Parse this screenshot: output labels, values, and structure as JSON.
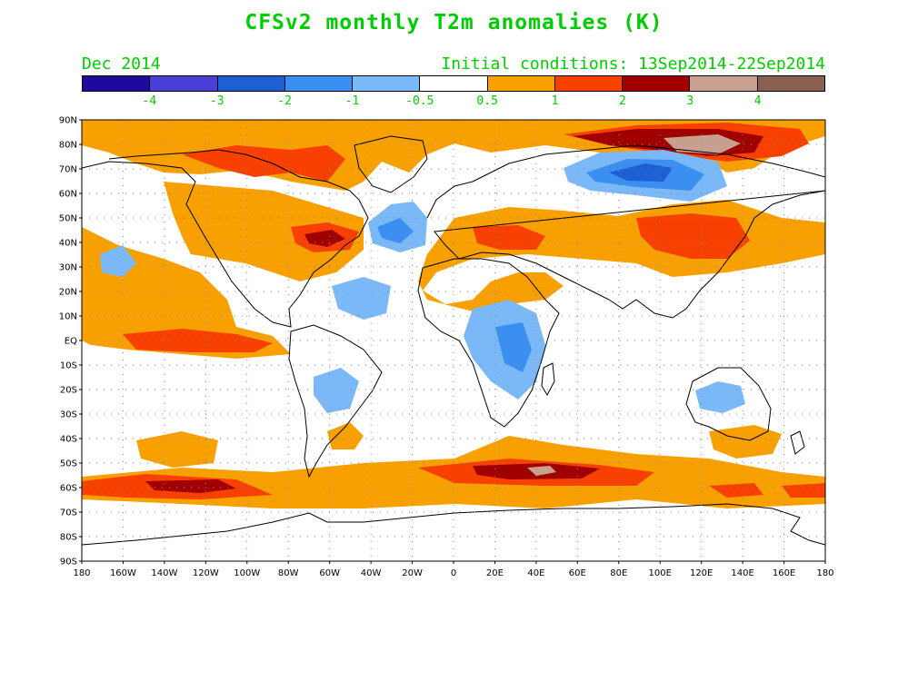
{
  "title": "CFSv2 monthly T2m anomalies (K)",
  "valid_month": "Dec 2014",
  "initial_conditions": "Initial conditions: 13Sep2014-22Sep2014",
  "colorbar": {
    "colors": [
      "#1e0a9c",
      "#4a3fd8",
      "#1f5fd4",
      "#3a8ff0",
      "#7ab8f8",
      "#ffffff",
      "#f8a000",
      "#f84000",
      "#a00000",
      "#c8a090",
      "#886050"
    ],
    "labels": [
      "-4",
      "-3",
      "-2",
      "-1",
      "-0.5",
      "0.5",
      "1",
      "2",
      "3",
      "4"
    ]
  },
  "axes": {
    "lat_labels": [
      "90N",
      "80N",
      "70N",
      "60N",
      "50N",
      "40N",
      "30N",
      "20N",
      "10N",
      "EQ",
      "10S",
      "20S",
      "30S",
      "40S",
      "50S",
      "60S",
      "70S",
      "80S",
      "90S"
    ],
    "lon_labels": [
      "180",
      "160W",
      "140W",
      "120W",
      "100W",
      "80W",
      "60W",
      "40W",
      "20W",
      "0",
      "20E",
      "40E",
      "60E",
      "80E",
      "100E",
      "120E",
      "140E",
      "160E",
      "180"
    ]
  },
  "anomaly_regions": [
    {
      "region": "Arctic / Siberia warm band",
      "level": "2 to 3"
    },
    {
      "region": "Central Siberia",
      "level": "3 to 4"
    },
    {
      "region": "Northwest Russia / Scandinavia cold",
      "level": "-2 to -1"
    },
    {
      "region": "North Atlantic (mid-latitude) cold",
      "level": "-1 to -0.5"
    },
    {
      "region": "Eastern North America warm",
      "level": "1 to 2"
    },
    {
      "region": "Equatorial East Pacific warm",
      "level": "1 to 2"
    },
    {
      "region": "Southern Ocean warm band",
      "level": "2 to 3"
    },
    {
      "region": "East Africa cold",
      "level": "-1 to -0.5"
    },
    {
      "region": "Northern Australia cold",
      "level": "-1 to -0.5"
    },
    {
      "region": "China / Central Asia warm",
      "level": "1 to 2"
    }
  ]
}
